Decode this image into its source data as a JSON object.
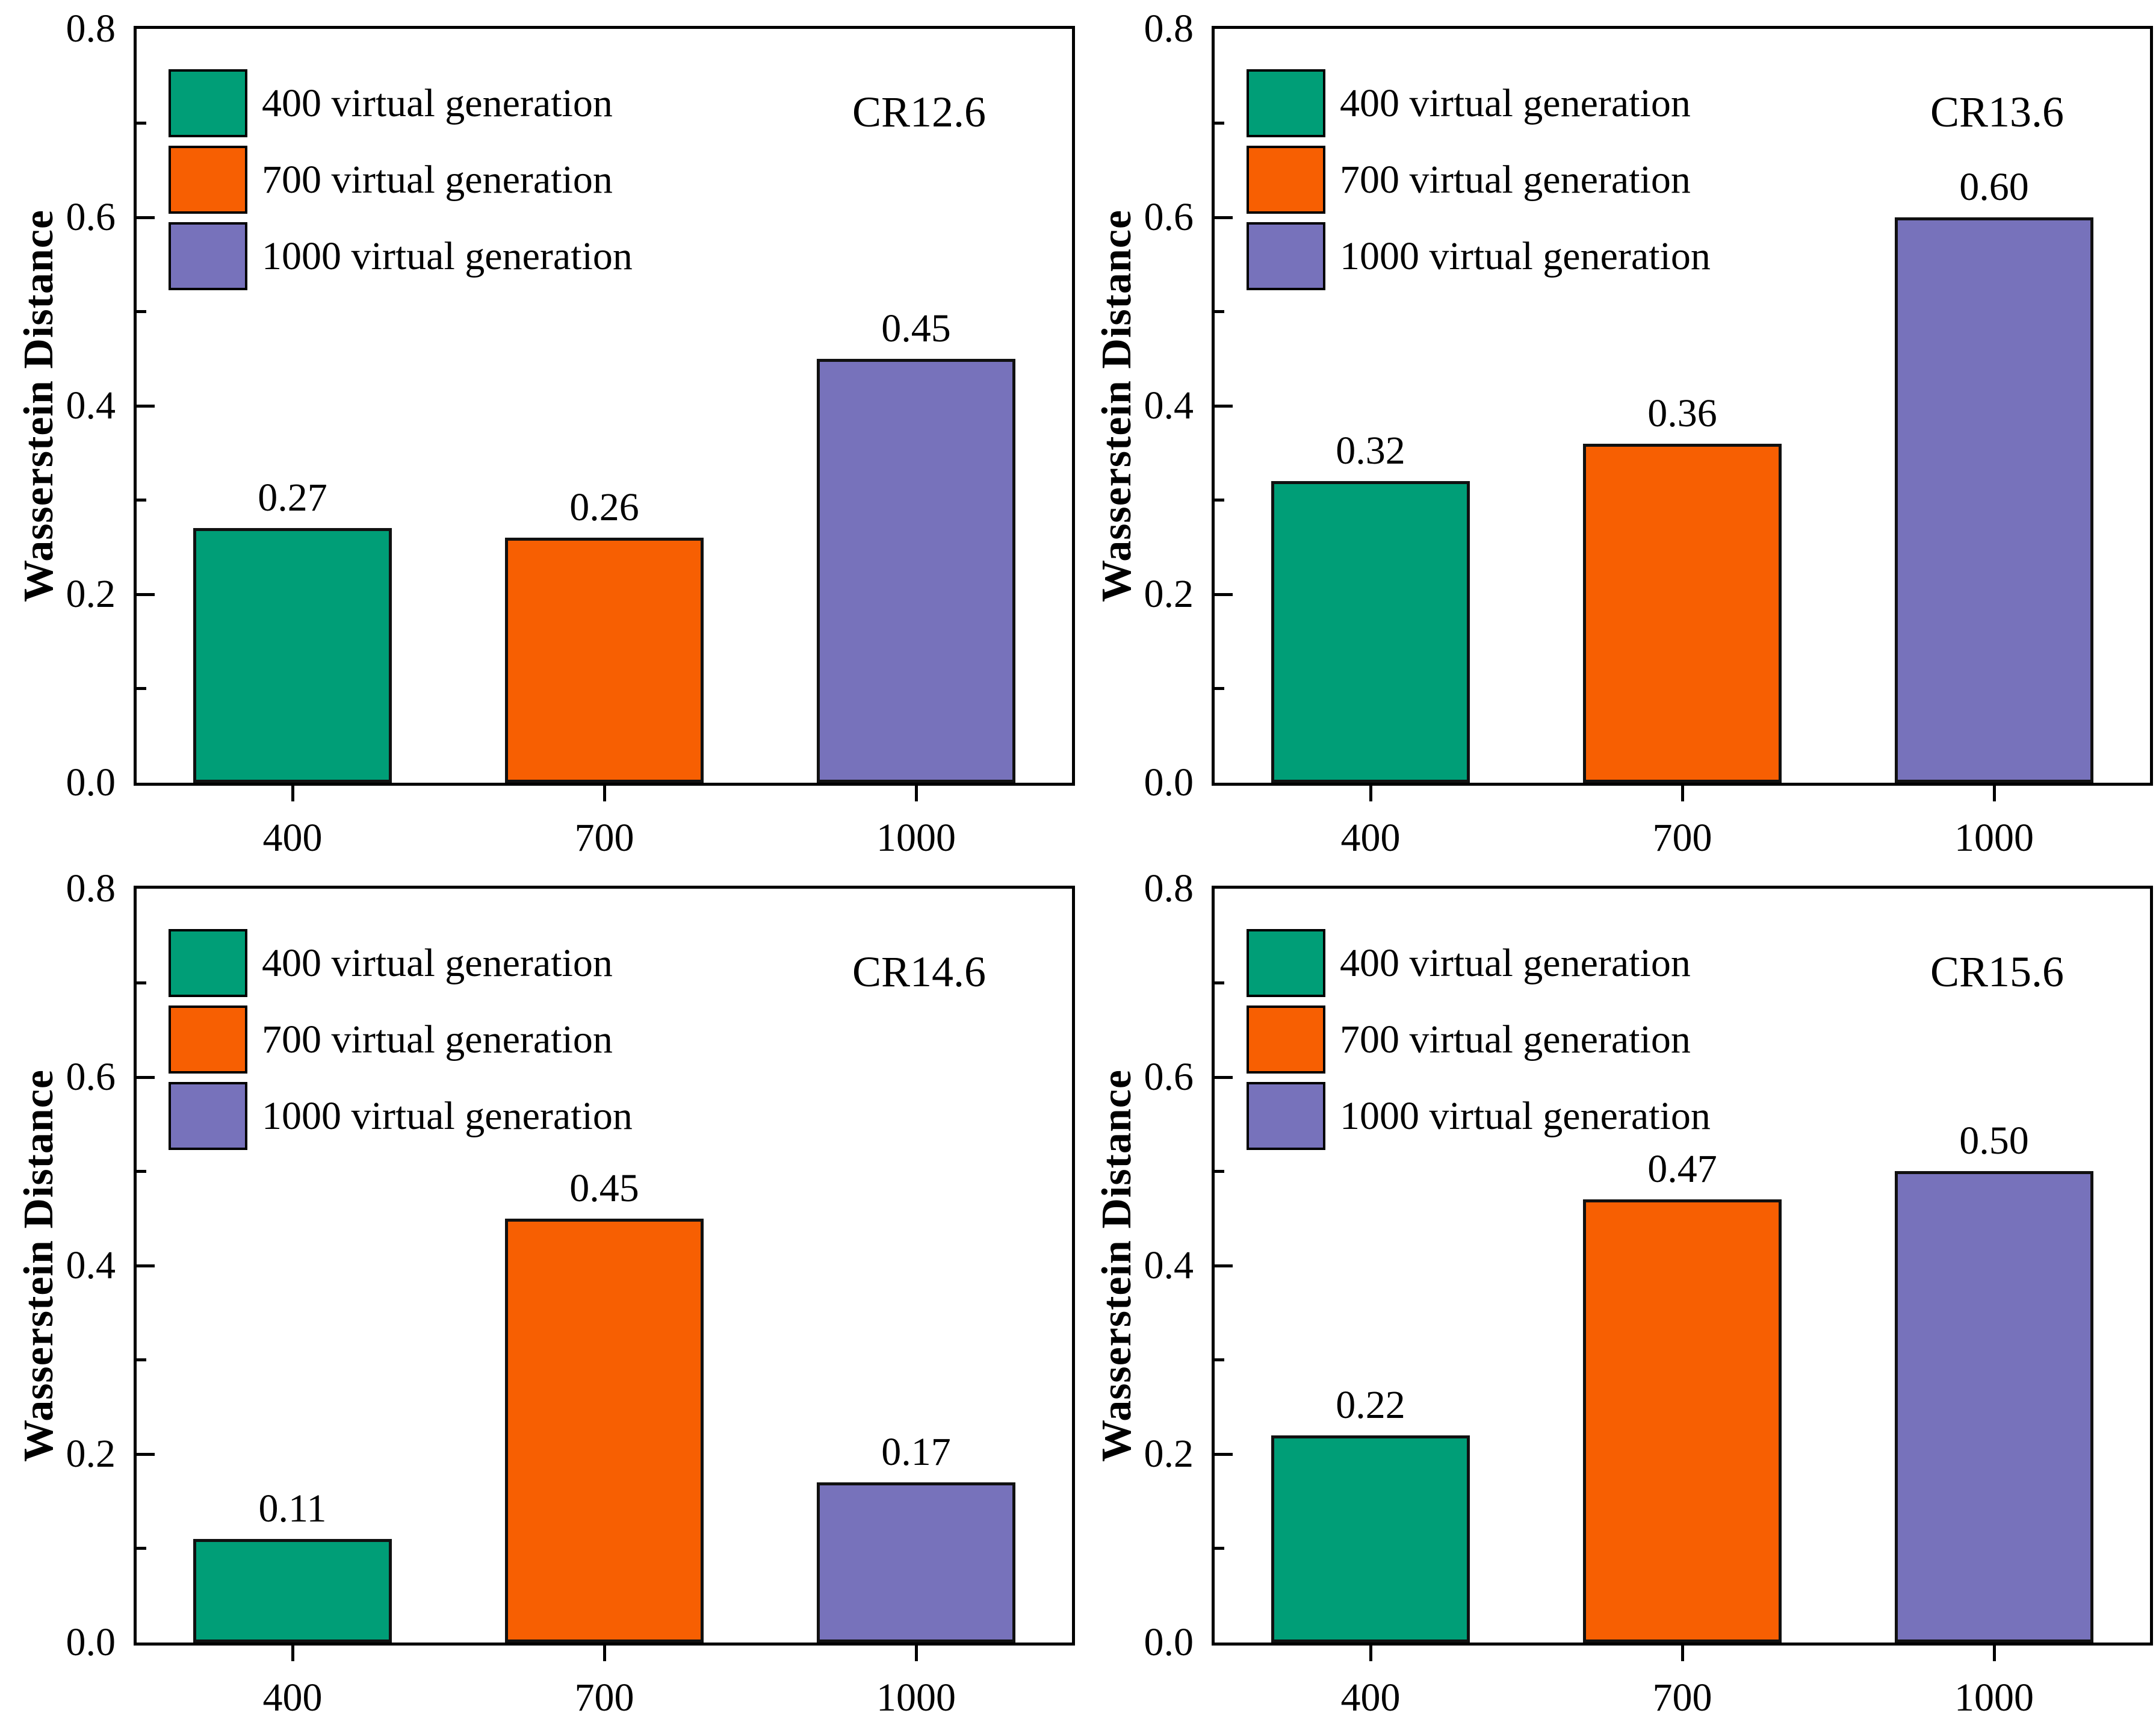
{
  "figure": {
    "background": "#ffffff",
    "ylabel": "Wasserstein Distance",
    "x_axis_categories": [
      "400",
      "700",
      "1000"
    ],
    "y_tick_labels": [
      "0.0",
      "0.2",
      "0.4",
      "0.6",
      "0.8"
    ],
    "legend_items": [
      {
        "label": "400 virtual generation",
        "color": "#009E77"
      },
      {
        "label": "700 virtual generation",
        "color": "#F75F02"
      },
      {
        "label": "1000 virtual generation",
        "color": "#7772BB"
      }
    ]
  },
  "chart_data": [
    {
      "type": "bar",
      "panel_label": "CR12.6",
      "title": "CR12.6",
      "categories": [
        "400",
        "700",
        "1000"
      ],
      "values": [
        0.27,
        0.26,
        0.45
      ],
      "value_labels": [
        "0.27",
        "0.26",
        "0.45"
      ],
      "bar_colors": [
        "#009E77",
        "#F75F02",
        "#7772BB"
      ],
      "xlabel": "",
      "ylabel": "Wasserstein Distance",
      "ylim": [
        0,
        0.8
      ],
      "y_major_ticks": [
        0.2,
        0.4,
        0.6
      ],
      "y_minor_ticks": [
        0.1,
        0.3,
        0.5,
        0.7
      ],
      "legend": [
        "400 virtual generation",
        "700 virtual generation",
        "1000 virtual generation"
      ],
      "legend_position": "upper-left",
      "grid": false
    },
    {
      "type": "bar",
      "panel_label": "CR13.6",
      "title": "CR13.6",
      "categories": [
        "400",
        "700",
        "1000"
      ],
      "values": [
        0.32,
        0.36,
        0.6
      ],
      "value_labels": [
        "0.32",
        "0.36",
        "0.60"
      ],
      "bar_colors": [
        "#009E77",
        "#F75F02",
        "#7772BB"
      ],
      "xlabel": "",
      "ylabel": "Wasserstein Distance",
      "ylim": [
        0,
        0.8
      ],
      "y_major_ticks": [
        0.2,
        0.4,
        0.6
      ],
      "y_minor_ticks": [
        0.1,
        0.3,
        0.5,
        0.7
      ],
      "legend": [
        "400 virtual generation",
        "700 virtual generation",
        "1000 virtual generation"
      ],
      "legend_position": "upper-left",
      "grid": false
    },
    {
      "type": "bar",
      "panel_label": "CR14.6",
      "title": "CR14.6",
      "categories": [
        "400",
        "700",
        "1000"
      ],
      "values": [
        0.11,
        0.45,
        0.17
      ],
      "value_labels": [
        "0.11",
        "0.45",
        "0.17"
      ],
      "bar_colors": [
        "#009E77",
        "#F75F02",
        "#7772BB"
      ],
      "xlabel": "",
      "ylabel": "Wasserstein Distance",
      "ylim": [
        0,
        0.8
      ],
      "y_major_ticks": [
        0.2,
        0.4,
        0.6
      ],
      "y_minor_ticks": [
        0.1,
        0.3,
        0.5,
        0.7
      ],
      "legend": [
        "400 virtual generation",
        "700 virtual generation",
        "1000 virtual generation"
      ],
      "legend_position": "upper-left",
      "grid": false
    },
    {
      "type": "bar",
      "panel_label": "CR15.6",
      "title": "CR15.6",
      "categories": [
        "400",
        "700",
        "1000"
      ],
      "values": [
        0.22,
        0.47,
        0.5
      ],
      "value_labels": [
        "0.22",
        "0.47",
        "0.50"
      ],
      "bar_colors": [
        "#009E77",
        "#F75F02",
        "#7772BB"
      ],
      "xlabel": "",
      "ylabel": "Wasserstein Distance",
      "ylim": [
        0,
        0.8
      ],
      "y_major_ticks": [
        0.2,
        0.4,
        0.6
      ],
      "y_minor_ticks": [
        0.1,
        0.3,
        0.5,
        0.7
      ],
      "legend": [
        "400 virtual generation",
        "700 virtual generation",
        "1000 virtual generation"
      ],
      "legend_position": "upper-left",
      "grid": false
    }
  ]
}
